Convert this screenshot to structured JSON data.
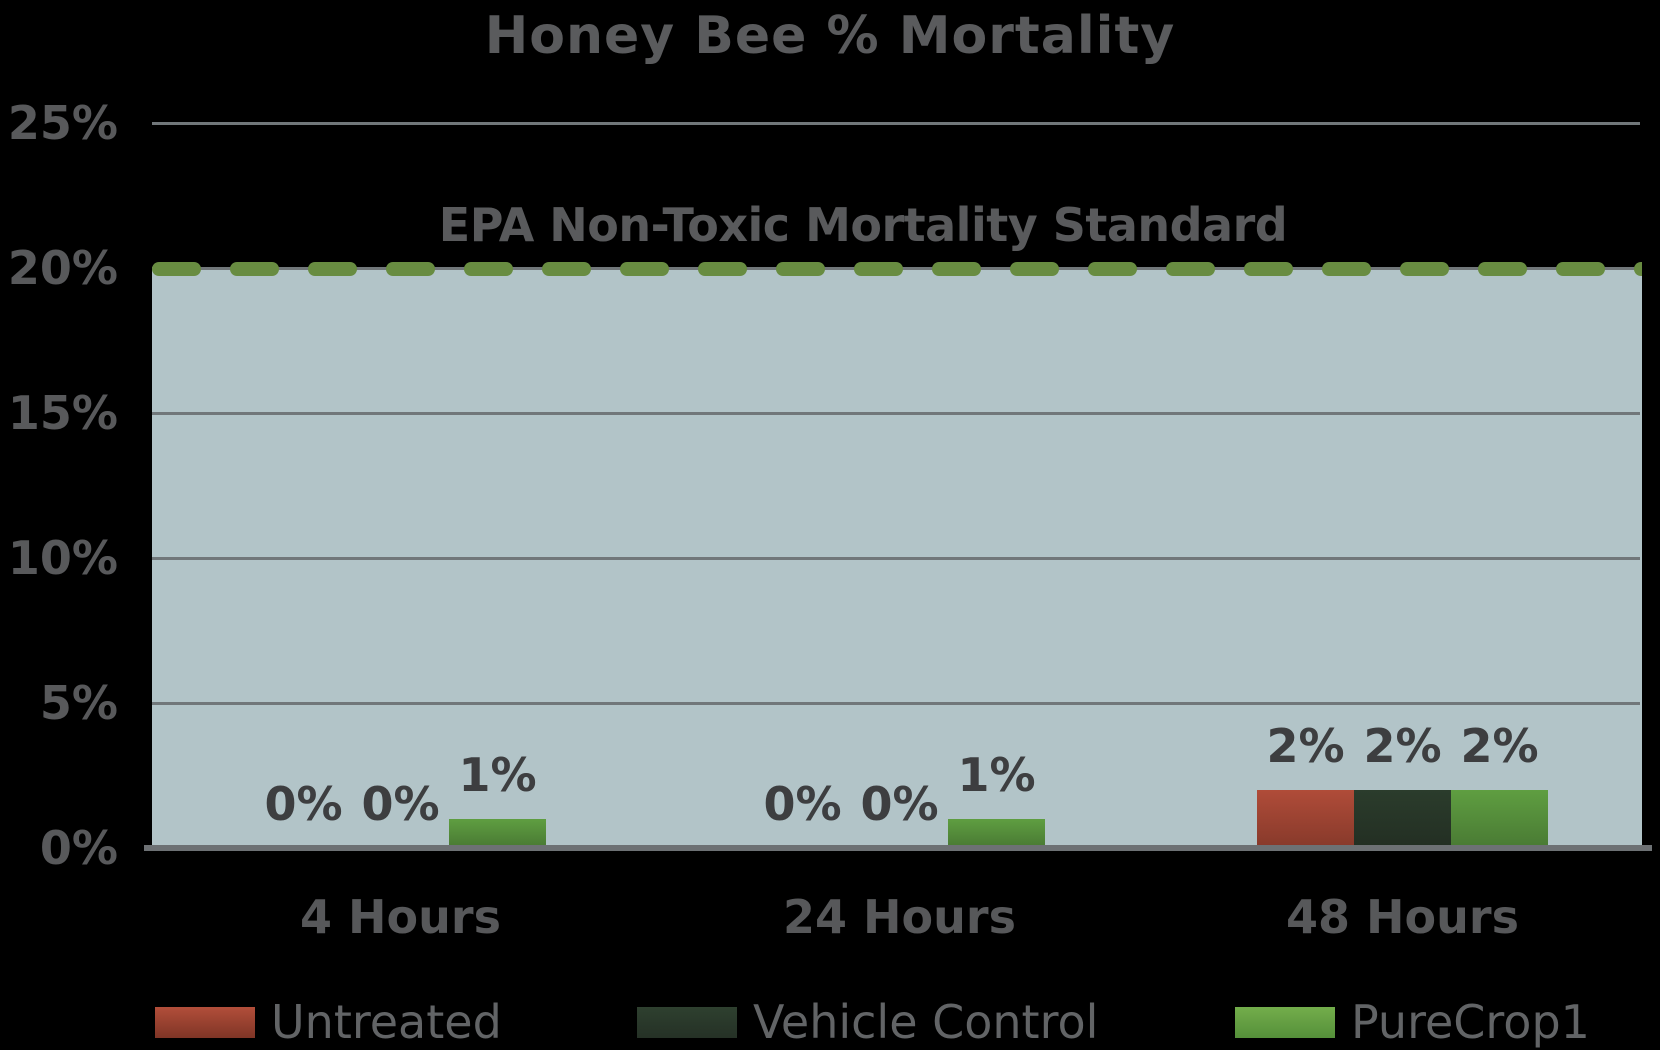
{
  "title": "Honey Bee % Mortality",
  "chart_data": {
    "type": "bar",
    "title": "Honey Bee % Mortality",
    "categories": [
      "4 Hours",
      "24 Hours",
      "48 Hours"
    ],
    "series": [
      {
        "name": "Untreated",
        "values": [
          0,
          0,
          2
        ],
        "labels": [
          "0%",
          "0%",
          "2%"
        ],
        "bar_color_top": "#b04c39",
        "bar_color_bottom": "#883a2b",
        "legend_color_top": "#b24e3a",
        "legend_color_bottom": "#7f3526"
      },
      {
        "name": "Vehicle Control",
        "values": [
          0,
          0,
          2
        ],
        "labels": [
          "0%",
          "0%",
          "2%"
        ],
        "bar_color_top": "#2b3c2c",
        "bar_color_bottom": "#232f23",
        "legend_color_top": "#2e402f",
        "legend_color_bottom": "#253126"
      },
      {
        "name": "PureCrop1",
        "values": [
          1,
          1,
          2
        ],
        "labels": [
          "1%",
          "1%",
          "2%"
        ],
        "bar_color_top": "#5f9e41",
        "bar_color_bottom": "#4a7b34",
        "legend_color_top": "#73ad4b",
        "legend_color_bottom": "#55903a"
      }
    ],
    "y_axis": {
      "ticks": [
        {
          "value": 25,
          "label": "25%"
        },
        {
          "value": 20,
          "label": "20%"
        },
        {
          "value": 15,
          "label": "15%"
        },
        {
          "value": 10,
          "label": "10%"
        },
        {
          "value": 5,
          "label": "5%"
        },
        {
          "value": 0,
          "label": "0%"
        }
      ],
      "ylim": [
        0,
        25
      ],
      "grid": true
    },
    "reference_line": {
      "value": 20,
      "label": "EPA Non-Toxic Mortality Standard",
      "style": "dashed",
      "color": "#688c41"
    },
    "band": {
      "from": 0,
      "to": 20,
      "color": "#b2c4c8"
    },
    "legend_position": "bottom"
  },
  "colors": {
    "background": "#000000",
    "plot_band": "#b2c4c8",
    "gridline": "#71777a",
    "axis_line": "#6d7174",
    "title_text": "#5a5b5d",
    "axis_text": "#58595b",
    "data_label_text": "#3d3e40",
    "legend_text": "#626466",
    "reference_dash": "#688c41"
  }
}
